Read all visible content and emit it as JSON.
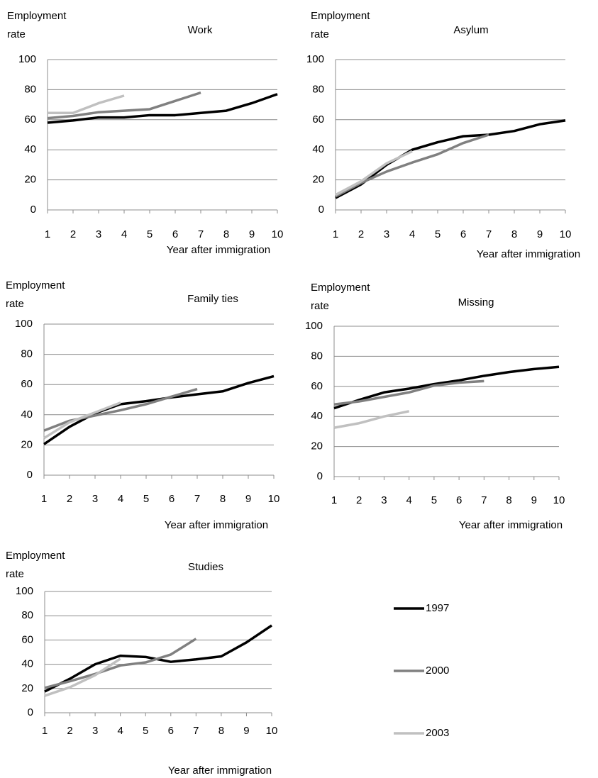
{
  "chart_data": [
    {
      "type": "line",
      "title": "Work",
      "ylabel": "Employment rate",
      "xlabel": "Year after immigration",
      "x": [
        1,
        2,
        3,
        4,
        5,
        6,
        7,
        8,
        9,
        10
      ],
      "xlim": [
        1,
        10
      ],
      "xticks": [
        1,
        2,
        3,
        4,
        5,
        6,
        7,
        8,
        9,
        10
      ],
      "ylim": [
        0,
        100
      ],
      "yticks": [
        0,
        20,
        40,
        60,
        80,
        100
      ],
      "grid": true,
      "series": [
        {
          "color": "#000000",
          "values": [
            58,
            59.5,
            61.5,
            61.5,
            63,
            63,
            64.5,
            66,
            71,
            77
          ]
        },
        {
          "color": "#808080",
          "values": [
            61,
            62.5,
            65,
            66,
            67,
            72.5,
            78,
            null,
            null,
            null
          ]
        },
        {
          "color": "#c0c0c0",
          "values": [
            64.5,
            64.5,
            71,
            76,
            null,
            null,
            null,
            null,
            null,
            null
          ]
        }
      ]
    },
    {
      "type": "line",
      "title": "Asylum",
      "ylabel": "Employment rate",
      "xlabel": "Year after immigration",
      "x": [
        1,
        2,
        3,
        4,
        5,
        6,
        7,
        8,
        9,
        10
      ],
      "xlim": [
        1,
        10
      ],
      "xticks": [
        1,
        2,
        3,
        4,
        5,
        6,
        7,
        8,
        9,
        10
      ],
      "ylim": [
        0,
        100
      ],
      "yticks": [
        0,
        20,
        40,
        60,
        80,
        100
      ],
      "grid": true,
      "series": [
        {
          "color": "#000000",
          "values": [
            8,
            17,
            30,
            40,
            45,
            49,
            50,
            52.5,
            57,
            59.5
          ]
        },
        {
          "color": "#808080",
          "values": [
            9,
            18,
            25.5,
            31.5,
            37,
            44.5,
            50,
            null,
            null,
            null
          ]
        },
        {
          "color": "#c0c0c0",
          "values": [
            10,
            19,
            31,
            39,
            null,
            null,
            null,
            null,
            null,
            null
          ]
        }
      ]
    },
    {
      "type": "line",
      "title": "Family ties",
      "ylabel": "Employment rate",
      "xlabel": "Year after immigration",
      "x": [
        1,
        2,
        3,
        4,
        5,
        6,
        7,
        8,
        9,
        10
      ],
      "xlim": [
        1,
        10
      ],
      "xticks": [
        1,
        2,
        3,
        4,
        5,
        6,
        7,
        8,
        9,
        10
      ],
      "ylim": [
        0,
        100
      ],
      "yticks": [
        0,
        20,
        40,
        60,
        80,
        100
      ],
      "grid": true,
      "series": [
        {
          "color": "#000000",
          "values": [
            20.5,
            32,
            41,
            47,
            49,
            51.5,
            53.5,
            55.5,
            61,
            65.5
          ]
        },
        {
          "color": "#808080",
          "values": [
            29.5,
            36,
            39.5,
            43,
            47,
            52,
            57,
            null,
            null,
            null
          ]
        },
        {
          "color": "#c0c0c0",
          "values": [
            24.5,
            35,
            41.5,
            48,
            null,
            null,
            null,
            null,
            null,
            null
          ]
        }
      ]
    },
    {
      "type": "line",
      "title": "Missing",
      "ylabel": "Employment rate",
      "xlabel": "Year after immigration",
      "x": [
        1,
        2,
        3,
        4,
        5,
        6,
        7,
        8,
        9,
        10
      ],
      "xlim": [
        1,
        10
      ],
      "xticks": [
        1,
        2,
        3,
        4,
        5,
        6,
        7,
        8,
        9,
        10
      ],
      "ylim": [
        0,
        100
      ],
      "yticks": [
        0,
        20,
        40,
        60,
        80,
        100
      ],
      "grid": true,
      "series": [
        {
          "color": "#000000",
          "values": [
            45.5,
            51,
            56,
            58.5,
            61.5,
            64,
            67,
            69.5,
            71.5,
            73
          ]
        },
        {
          "color": "#808080",
          "values": [
            48,
            50,
            53,
            56,
            60.5,
            62.5,
            63.5,
            null,
            null,
            null
          ]
        },
        {
          "color": "#c0c0c0",
          "values": [
            32.5,
            35.5,
            40,
            43.5,
            null,
            null,
            null,
            null,
            null,
            null
          ]
        }
      ]
    },
    {
      "type": "line",
      "title": "Studies",
      "ylabel": "Employment rate",
      "xlabel": "Year after immigration",
      "x": [
        1,
        2,
        3,
        4,
        5,
        6,
        7,
        8,
        9,
        10
      ],
      "xlim": [
        1,
        10
      ],
      "xticks": [
        1,
        2,
        3,
        4,
        5,
        6,
        7,
        8,
        9,
        10
      ],
      "ylim": [
        0,
        100
      ],
      "yticks": [
        0,
        20,
        40,
        60,
        80,
        100
      ],
      "grid": true,
      "series": [
        {
          "name": "1997",
          "color": "#000000",
          "values": [
            17.5,
            28,
            40,
            47,
            46,
            42,
            44,
            46.5,
            58,
            72
          ]
        },
        {
          "name": "2000",
          "color": "#808080",
          "values": [
            20.5,
            26,
            32,
            39,
            41.5,
            48,
            61,
            null,
            null,
            null
          ]
        },
        {
          "name": "2003",
          "color": "#c0c0c0",
          "values": [
            14,
            21,
            31,
            44.5,
            null,
            null,
            null,
            null,
            null,
            null
          ]
        }
      ]
    }
  ]
}
